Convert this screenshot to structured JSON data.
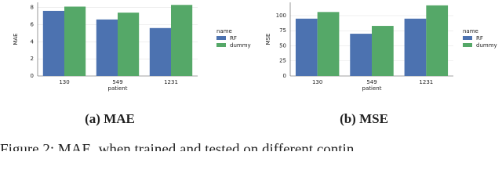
{
  "chart_data": [
    {
      "type": "bar",
      "xlabel": "patient",
      "ylabel": "MAE",
      "categories": [
        "130",
        "549",
        "1231"
      ],
      "series": [
        {
          "name": "RF",
          "color": "#4c72b0",
          "values": [
            7.6,
            6.6,
            5.6
          ]
        },
        {
          "name": "dummy",
          "color": "#55a868",
          "values": [
            8.1,
            7.4,
            8.3
          ]
        }
      ],
      "ylim": [
        0,
        8.6
      ],
      "yticks": [
        0,
        2,
        4,
        6,
        8
      ],
      "grid": true,
      "legend_title": "name",
      "legend": "right",
      "caption": "(a) MAE"
    },
    {
      "type": "bar",
      "xlabel": "patient",
      "ylabel": "MSE",
      "categories": [
        "130",
        "549",
        "1231"
      ],
      "series": [
        {
          "name": "RF",
          "color": "#4c72b0",
          "values": [
            95,
            70,
            95
          ]
        },
        {
          "name": "dummy",
          "color": "#55a868",
          "values": [
            106,
            83,
            117
          ]
        }
      ],
      "ylim": [
        0,
        122
      ],
      "yticks": [
        0,
        25,
        50,
        75,
        100
      ],
      "grid": true,
      "legend_title": "name",
      "legend": "right",
      "caption": "(b) MSE"
    }
  ],
  "figure_caption": "Figure 2: MAE, when trained and tested on different contin"
}
